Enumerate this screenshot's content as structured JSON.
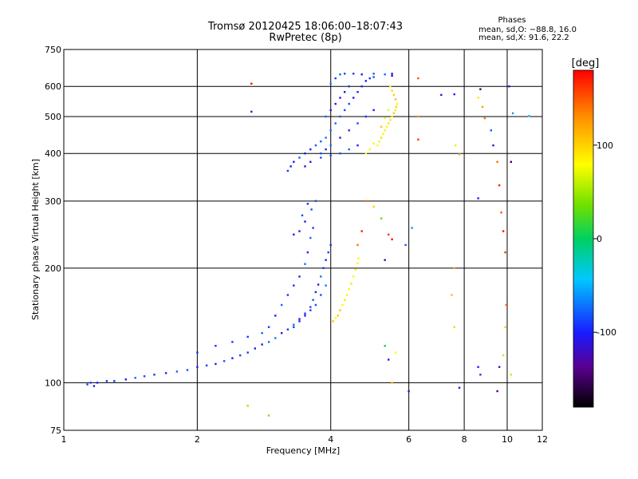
{
  "chart_data": {
    "type": "scatter",
    "title": "Tromsø 20120425 18:06:00–18:07:43",
    "subtitle": "RwPretec (8p)",
    "xlabel": "Frequency [MHz]",
    "ylabel": "Stationary phase Virtual Height [km]",
    "x_scale": "log",
    "y_scale": "log",
    "xlim": [
      1,
      12
    ],
    "ylim": [
      75,
      750
    ],
    "x_ticks": [
      1,
      2,
      4,
      6,
      8,
      10,
      12
    ],
    "x_tick_labels": [
      "1",
      "2",
      "4",
      "6",
      "8",
      "10",
      "12"
    ],
    "y_ticks": [
      75,
      100,
      200,
      300,
      400,
      500,
      600,
      750
    ],
    "y_tick_labels": [
      "75",
      "100",
      "200",
      "300",
      "400",
      "500",
      "600",
      "750"
    ],
    "grid": true,
    "phases": {
      "title": "Phases",
      "line1": "mean, sd,O: −88.8, 16.0",
      "line2": "mean, sd,X:  91.6, 22.2"
    },
    "colorbar": {
      "label": "[deg]",
      "range": [
        -180,
        180
      ],
      "ticks": [
        100,
        0,
        -100
      ],
      "tick_labels": [
        "100",
        "0",
        "-100"
      ],
      "colormap": "rainbow"
    },
    "series": [
      {
        "mode": "O",
        "phase_deg": -90,
        "points": [
          [
            1.13,
            99
          ],
          [
            1.15,
            100
          ],
          [
            1.17,
            98
          ],
          [
            1.19,
            100
          ],
          [
            1.25,
            101
          ],
          [
            1.3,
            101
          ],
          [
            1.38,
            102
          ],
          [
            1.45,
            103
          ],
          [
            1.52,
            104
          ],
          [
            1.6,
            105
          ],
          [
            1.7,
            106
          ],
          [
            1.8,
            107
          ],
          [
            1.9,
            108
          ],
          [
            2.0,
            110
          ],
          [
            2.1,
            111
          ],
          [
            2.2,
            112
          ],
          [
            2.3,
            114
          ],
          [
            2.4,
            116
          ],
          [
            2.5,
            118
          ],
          [
            2.6,
            120
          ],
          [
            2.7,
            123
          ],
          [
            2.8,
            126
          ],
          [
            2.9,
            128
          ],
          [
            3.0,
            131
          ],
          [
            3.1,
            135
          ],
          [
            3.2,
            138
          ],
          [
            3.3,
            142
          ],
          [
            3.4,
            147
          ],
          [
            3.5,
            152
          ],
          [
            3.6,
            158
          ],
          [
            3.65,
            165
          ],
          [
            3.7,
            173
          ],
          [
            3.75,
            181
          ],
          [
            3.8,
            190
          ],
          [
            3.85,
            200
          ],
          [
            3.9,
            210
          ],
          [
            3.95,
            220
          ],
          [
            4.0,
            230
          ],
          [
            3.0,
            150
          ],
          [
            3.1,
            160
          ],
          [
            3.2,
            170
          ],
          [
            3.3,
            180
          ],
          [
            3.4,
            190
          ],
          [
            3.5,
            205
          ],
          [
            3.55,
            220
          ],
          [
            3.6,
            240
          ],
          [
            3.65,
            255
          ],
          [
            3.5,
            265
          ],
          [
            3.45,
            275
          ],
          [
            3.55,
            295
          ],
          [
            3.62,
            285
          ],
          [
            3.7,
            300
          ],
          [
            3.4,
            250
          ],
          [
            3.3,
            245
          ],
          [
            3.3,
            140
          ],
          [
            3.4,
            145
          ],
          [
            3.5,
            150
          ],
          [
            3.6,
            155
          ],
          [
            3.7,
            160
          ],
          [
            3.8,
            170
          ],
          [
            3.9,
            180
          ],
          [
            2.0,
            120
          ],
          [
            2.2,
            125
          ],
          [
            2.4,
            128
          ],
          [
            2.6,
            132
          ],
          [
            2.8,
            135
          ],
          [
            2.9,
            140
          ],
          [
            3.2,
            360
          ],
          [
            3.25,
            370
          ],
          [
            3.3,
            380
          ],
          [
            3.4,
            390
          ],
          [
            3.5,
            400
          ],
          [
            3.6,
            410
          ],
          [
            3.7,
            420
          ],
          [
            3.8,
            430
          ],
          [
            3.9,
            440
          ],
          [
            4.0,
            460
          ],
          [
            4.1,
            480
          ],
          [
            4.2,
            500
          ],
          [
            4.3,
            520
          ],
          [
            4.4,
            540
          ],
          [
            4.5,
            560
          ],
          [
            4.6,
            580
          ],
          [
            4.7,
            600
          ],
          [
            4.8,
            620
          ],
          [
            4.9,
            630
          ],
          [
            5.0,
            635
          ],
          [
            3.8,
            400
          ],
          [
            3.9,
            410
          ],
          [
            4.0,
            420
          ],
          [
            4.2,
            440
          ],
          [
            4.4,
            460
          ],
          [
            4.6,
            480
          ],
          [
            4.8,
            500
          ],
          [
            5.0,
            520
          ],
          [
            4.0,
            610
          ],
          [
            4.1,
            630
          ],
          [
            4.2,
            645
          ],
          [
            4.3,
            648
          ],
          [
            4.5,
            648
          ],
          [
            4.7,
            645
          ],
          [
            5.0,
            648
          ],
          [
            5.3,
            645
          ],
          [
            5.5,
            648
          ],
          [
            3.5,
            370
          ],
          [
            3.6,
            380
          ],
          [
            3.8,
            390
          ],
          [
            4.0,
            395
          ],
          [
            4.2,
            400
          ],
          [
            4.4,
            410
          ],
          [
            4.6,
            420
          ],
          [
            3.9,
            500
          ],
          [
            4.0,
            520
          ],
          [
            4.1,
            540
          ],
          [
            4.2,
            560
          ],
          [
            4.3,
            580
          ],
          [
            4.4,
            600
          ]
        ]
      },
      {
        "mode": "X",
        "phase_deg": 92,
        "points": [
          [
            4.15,
            150
          ],
          [
            4.2,
            155
          ],
          [
            4.25,
            160
          ],
          [
            4.3,
            165
          ],
          [
            4.35,
            170
          ],
          [
            4.4,
            176
          ],
          [
            4.45,
            182
          ],
          [
            4.5,
            190
          ],
          [
            4.55,
            198
          ],
          [
            4.6,
            206
          ],
          [
            4.62,
            212
          ],
          [
            4.05,
            145
          ],
          [
            4.1,
            148
          ],
          [
            5.1,
            420
          ],
          [
            5.15,
            430
          ],
          [
            5.2,
            440
          ],
          [
            5.25,
            450
          ],
          [
            5.3,
            460
          ],
          [
            5.35,
            470
          ],
          [
            5.4,
            480
          ],
          [
            5.45,
            490
          ],
          [
            5.5,
            500
          ],
          [
            5.55,
            510
          ],
          [
            5.6,
            520
          ],
          [
            5.62,
            530
          ],
          [
            5.65,
            540
          ],
          [
            5.6,
            555
          ],
          [
            5.55,
            570
          ],
          [
            5.5,
            585
          ],
          [
            5.45,
            600
          ],
          [
            4.9,
            410
          ],
          [
            5.0,
            425
          ],
          [
            5.2,
            470
          ],
          [
            5.3,
            495
          ],
          [
            5.4,
            520
          ],
          [
            4.8,
            400
          ]
        ]
      },
      {
        "mode": "noise",
        "points": [
          [
            2.65,
            610,
            175
          ],
          [
            2.65,
            515,
            -100
          ],
          [
            6.3,
            630,
            150
          ],
          [
            6.3,
            500,
            130
          ],
          [
            6.3,
            435,
            160
          ],
          [
            7.1,
            570,
            -110
          ],
          [
            7.6,
            572,
            -100
          ],
          [
            7.65,
            420,
            70
          ],
          [
            7.8,
            398,
            120
          ],
          [
            8.7,
            590,
            -150
          ],
          [
            8.6,
            560,
            90
          ],
          [
            8.8,
            530,
            120
          ],
          [
            8.9,
            495,
            140
          ],
          [
            9.2,
            460,
            -80
          ],
          [
            9.3,
            420,
            -120
          ],
          [
            9.5,
            380,
            140
          ],
          [
            9.6,
            330,
            170
          ],
          [
            9.7,
            280,
            150
          ],
          [
            9.8,
            250,
            175
          ],
          [
            9.9,
            220,
            160
          ],
          [
            9.95,
            160,
            150
          ],
          [
            9.9,
            140,
            100
          ],
          [
            9.8,
            118,
            60
          ],
          [
            9.6,
            110,
            -120
          ],
          [
            9.5,
            95,
            -140
          ],
          [
            8.6,
            110,
            -100
          ],
          [
            8.7,
            105,
            -90
          ],
          [
            7.6,
            140,
            100
          ],
          [
            7.5,
            170,
            110
          ],
          [
            7.6,
            200,
            120
          ],
          [
            5.5,
            238,
            175
          ],
          [
            5.4,
            245,
            160
          ],
          [
            5.3,
            210,
            -130
          ],
          [
            5.6,
            120,
            80
          ],
          [
            5.5,
            100,
            110
          ],
          [
            6.0,
            95,
            -130
          ],
          [
            7.8,
            97,
            -100
          ],
          [
            2.9,
            82,
            40
          ],
          [
            2.6,
            87,
            50
          ],
          [
            10.2,
            105,
            60
          ],
          [
            10.1,
            600,
            -110
          ],
          [
            10.3,
            510,
            -60
          ],
          [
            11.2,
            502,
            -40
          ],
          [
            10.2,
            380,
            -150
          ],
          [
            5.2,
            270,
            30
          ],
          [
            5.0,
            290,
            100
          ],
          [
            4.85,
            300,
            140
          ],
          [
            5.3,
            125,
            0
          ],
          [
            5.4,
            115,
            -100
          ],
          [
            6.1,
            255,
            -60
          ],
          [
            5.9,
            230,
            -80
          ],
          [
            4.7,
            250,
            170
          ],
          [
            4.6,
            230,
            140
          ],
          [
            5.5,
            640,
            -120
          ],
          [
            8.6,
            305,
            -100
          ]
        ]
      }
    ]
  }
}
